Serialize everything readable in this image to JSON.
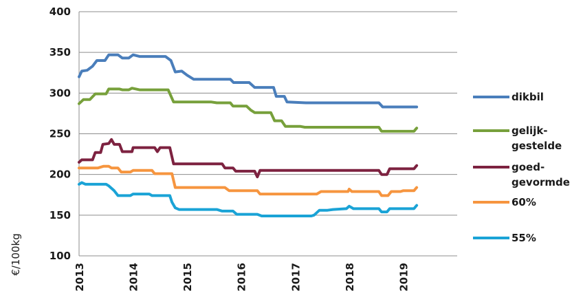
{
  "chart_data": {
    "type": "line",
    "title": "",
    "xlabel": "",
    "ylabel": "€/100kg",
    "ylim": [
      100,
      400
    ],
    "yticks": [
      100,
      150,
      200,
      250,
      300,
      350,
      400
    ],
    "xlim": [
      2013,
      2020
    ],
    "xticks": [
      "2013",
      "2014",
      "2015",
      "2016",
      "2017",
      "2018",
      "2019"
    ],
    "grid": true,
    "legend": "right",
    "series": [
      {
        "name": "dikbil",
        "color": "#4a7ebb",
        "points": [
          [
            2013.0,
            320
          ],
          [
            2013.05,
            327
          ],
          [
            2013.15,
            328
          ],
          [
            2013.25,
            333
          ],
          [
            2013.33,
            340
          ],
          [
            2013.48,
            340
          ],
          [
            2013.55,
            347
          ],
          [
            2013.72,
            347
          ],
          [
            2013.8,
            343
          ],
          [
            2013.92,
            343
          ],
          [
            2014.0,
            347
          ],
          [
            2014.12,
            345
          ],
          [
            2014.6,
            345
          ],
          [
            2014.7,
            340
          ],
          [
            2014.78,
            326
          ],
          [
            2014.9,
            327
          ],
          [
            2015.0,
            322
          ],
          [
            2015.12,
            317
          ],
          [
            2015.8,
            317
          ],
          [
            2015.86,
            313
          ],
          [
            2016.15,
            313
          ],
          [
            2016.25,
            307
          ],
          [
            2016.6,
            307
          ],
          [
            2016.65,
            296
          ],
          [
            2016.8,
            296
          ],
          [
            2016.85,
            289
          ],
          [
            2017.2,
            288
          ],
          [
            2018.55,
            288
          ],
          [
            2018.62,
            283
          ],
          [
            2019.25,
            283
          ]
        ]
      },
      {
        "name": "gelijk-gestelde",
        "color": "#77a03b",
        "points": [
          [
            2013.0,
            287
          ],
          [
            2013.08,
            292
          ],
          [
            2013.2,
            292
          ],
          [
            2013.3,
            299
          ],
          [
            2013.5,
            299
          ],
          [
            2013.55,
            305
          ],
          [
            2013.75,
            305
          ],
          [
            2013.8,
            304
          ],
          [
            2013.92,
            304
          ],
          [
            2013.98,
            306
          ],
          [
            2014.12,
            304
          ],
          [
            2014.65,
            304
          ],
          [
            2014.75,
            289
          ],
          [
            2015.45,
            289
          ],
          [
            2015.55,
            288
          ],
          [
            2015.8,
            288
          ],
          [
            2015.85,
            284
          ],
          [
            2016.1,
            284
          ],
          [
            2016.18,
            279
          ],
          [
            2016.25,
            276
          ],
          [
            2016.55,
            276
          ],
          [
            2016.62,
            266
          ],
          [
            2016.75,
            266
          ],
          [
            2016.82,
            259
          ],
          [
            2017.1,
            259
          ],
          [
            2017.18,
            258
          ],
          [
            2018.55,
            258
          ],
          [
            2018.6,
            253
          ],
          [
            2019.2,
            253
          ],
          [
            2019.25,
            257
          ]
        ]
      },
      {
        "name": "goed-gevormde",
        "color": "#7d2240",
        "points": [
          [
            2013.0,
            215
          ],
          [
            2013.05,
            218
          ],
          [
            2013.25,
            218
          ],
          [
            2013.3,
            227
          ],
          [
            2013.4,
            227
          ],
          [
            2013.44,
            237
          ],
          [
            2013.55,
            238
          ],
          [
            2013.6,
            243
          ],
          [
            2013.65,
            237
          ],
          [
            2013.75,
            237
          ],
          [
            2013.8,
            228
          ],
          [
            2013.98,
            228
          ],
          [
            2014.0,
            233
          ],
          [
            2014.4,
            233
          ],
          [
            2014.45,
            228
          ],
          [
            2014.5,
            233
          ],
          [
            2014.68,
            233
          ],
          [
            2014.75,
            213
          ],
          [
            2015.65,
            213
          ],
          [
            2015.7,
            208
          ],
          [
            2015.85,
            208
          ],
          [
            2015.9,
            204
          ],
          [
            2016.25,
            204
          ],
          [
            2016.3,
            197
          ],
          [
            2016.35,
            205
          ],
          [
            2018.55,
            205
          ],
          [
            2018.6,
            200
          ],
          [
            2018.7,
            200
          ],
          [
            2018.75,
            207
          ],
          [
            2019.2,
            207
          ],
          [
            2019.25,
            211
          ]
        ]
      },
      {
        "name": "60%",
        "color": "#f6953f",
        "points": [
          [
            2013.0,
            208
          ],
          [
            2013.35,
            208
          ],
          [
            2013.45,
            210
          ],
          [
            2013.55,
            210
          ],
          [
            2013.6,
            208
          ],
          [
            2013.72,
            208
          ],
          [
            2013.78,
            203
          ],
          [
            2013.95,
            203
          ],
          [
            2014.0,
            205
          ],
          [
            2014.35,
            205
          ],
          [
            2014.4,
            201
          ],
          [
            2014.72,
            201
          ],
          [
            2014.78,
            184
          ],
          [
            2015.7,
            184
          ],
          [
            2015.78,
            180
          ],
          [
            2016.3,
            180
          ],
          [
            2016.35,
            176
          ],
          [
            2017.4,
            176
          ],
          [
            2017.48,
            179
          ],
          [
            2017.98,
            179
          ],
          [
            2018.0,
            182
          ],
          [
            2018.05,
            179
          ],
          [
            2018.55,
            179
          ],
          [
            2018.6,
            174
          ],
          [
            2018.72,
            174
          ],
          [
            2018.78,
            179
          ],
          [
            2018.95,
            179
          ],
          [
            2019.0,
            180
          ],
          [
            2019.2,
            180
          ],
          [
            2019.25,
            184
          ]
        ]
      },
      {
        "name": "55%",
        "color": "#1aa3d6",
        "points": [
          [
            2013.0,
            188
          ],
          [
            2013.05,
            190
          ],
          [
            2013.12,
            188
          ],
          [
            2013.5,
            188
          ],
          [
            2013.55,
            186
          ],
          [
            2013.65,
            180
          ],
          [
            2013.72,
            174
          ],
          [
            2013.95,
            174
          ],
          [
            2014.0,
            176
          ],
          [
            2014.3,
            176
          ],
          [
            2014.35,
            174
          ],
          [
            2014.68,
            174
          ],
          [
            2014.72,
            166
          ],
          [
            2014.78,
            159
          ],
          [
            2014.85,
            157
          ],
          [
            2015.55,
            157
          ],
          [
            2015.65,
            155
          ],
          [
            2015.85,
            155
          ],
          [
            2015.92,
            151
          ],
          [
            2016.3,
            151
          ],
          [
            2016.38,
            149
          ],
          [
            2017.3,
            149
          ],
          [
            2017.35,
            150
          ],
          [
            2017.45,
            156
          ],
          [
            2017.6,
            156
          ],
          [
            2017.7,
            157
          ],
          [
            2017.95,
            158
          ],
          [
            2018.0,
            161
          ],
          [
            2018.08,
            158
          ],
          [
            2018.55,
            158
          ],
          [
            2018.6,
            154
          ],
          [
            2018.7,
            154
          ],
          [
            2018.75,
            158
          ],
          [
            2019.2,
            158
          ],
          [
            2019.25,
            162
          ]
        ]
      }
    ]
  },
  "legend": [
    {
      "lines": [
        "dikbil"
      ],
      "color": "#4a7ebb"
    },
    {
      "lines": [
        "gelijk-",
        "gestelde"
      ],
      "color": "#77a03b"
    },
    {
      "lines": [
        "goed-",
        "gevormde"
      ],
      "color": "#7d2240"
    },
    {
      "lines": [
        "60%"
      ],
      "color": "#f6953f"
    },
    {
      "lines": [
        "55%"
      ],
      "color": "#1aa3d6"
    }
  ]
}
